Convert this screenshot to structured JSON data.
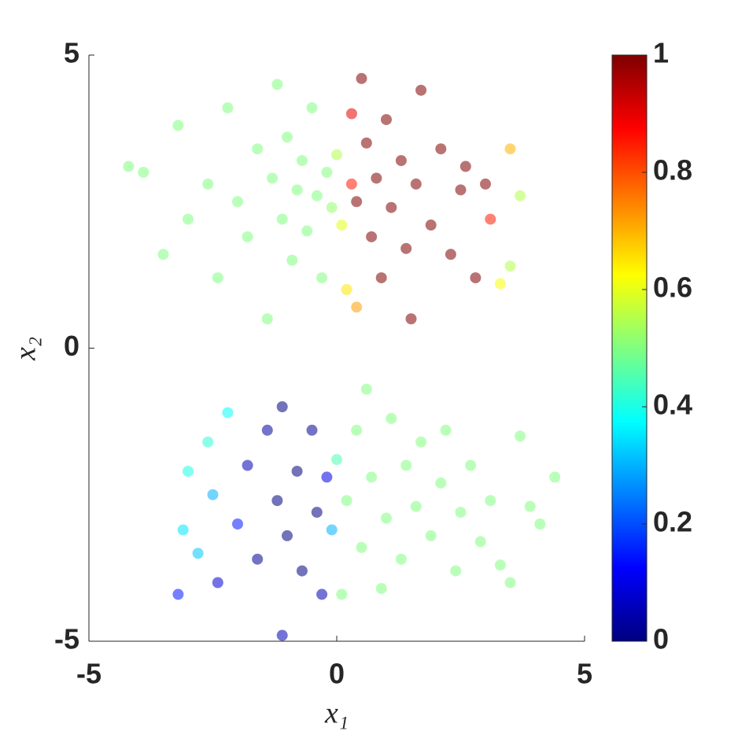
{
  "chart_data": {
    "type": "scatter",
    "xlabel": "x₁",
    "ylabel": "x₂",
    "colormap": "jet",
    "xlim": [
      -5,
      5
    ],
    "ylim": [
      -5,
      5
    ],
    "xticks": [
      -5,
      0,
      5
    ],
    "yticks": [
      -5,
      0,
      5
    ],
    "clim": [
      0,
      1
    ],
    "cticks": [
      0,
      0.2,
      0.4,
      0.6,
      0.8,
      1
    ],
    "x": [
      -4.2,
      -3.9,
      -3.5,
      -3.2,
      -3.0,
      -2.6,
      -2.4,
      -2.2,
      -2.0,
      -1.8,
      -1.6,
      -1.4,
      -1.3,
      -1.2,
      -1.1,
      -1.0,
      -0.9,
      -0.8,
      -0.7,
      -0.6,
      -0.5,
      -0.4,
      -0.3,
      -0.2,
      -0.1,
      0.0,
      0.1,
      0.2,
      0.3,
      0.3,
      0.4,
      0.4,
      0.5,
      0.6,
      0.7,
      0.8,
      0.9,
      1.0,
      1.1,
      1.3,
      1.4,
      1.5,
      1.6,
      1.7,
      1.9,
      2.1,
      2.3,
      2.5,
      2.6,
      2.8,
      3.0,
      3.1,
      3.3,
      3.5,
      3.5,
      3.7,
      -3.2,
      -3.1,
      -3.0,
      -2.8,
      -2.6,
      -2.5,
      -2.4,
      -2.2,
      -2.0,
      -1.8,
      -1.6,
      -1.4,
      -1.2,
      -1.1,
      -1.1,
      -1.0,
      -0.8,
      -0.7,
      -0.5,
      -0.4,
      -0.3,
      -0.2,
      -0.1,
      0.0,
      0.1,
      0.2,
      0.4,
      0.5,
      0.6,
      0.7,
      0.9,
      1.0,
      1.1,
      1.3,
      1.4,
      1.6,
      1.7,
      1.9,
      2.1,
      2.2,
      2.4,
      2.5,
      2.7,
      2.9,
      3.1,
      3.3,
      3.5,
      3.7,
      3.9,
      4.1,
      4.4
    ],
    "y": [
      3.1,
      3.0,
      1.6,
      3.8,
      2.2,
      2.8,
      1.2,
      4.1,
      2.5,
      1.9,
      3.4,
      0.5,
      2.9,
      4.5,
      2.2,
      3.6,
      1.5,
      2.7,
      3.2,
      2.0,
      4.1,
      2.6,
      1.2,
      3.0,
      2.4,
      3.3,
      2.1,
      1.0,
      2.8,
      4.0,
      2.5,
      0.7,
      4.6,
      3.5,
      1.9,
      2.9,
      1.2,
      3.9,
      2.4,
      3.2,
      1.7,
      0.5,
      2.8,
      4.4,
      2.1,
      3.4,
      1.6,
      2.7,
      3.1,
      1.2,
      2.8,
      2.2,
      1.1,
      3.4,
      1.4,
      2.6,
      -4.2,
      -3.1,
      -2.1,
      -3.5,
      -1.6,
      -2.5,
      -4.0,
      -1.1,
      -3.0,
      -2.0,
      -3.6,
      -1.4,
      -2.6,
      -1.0,
      -4.9,
      -3.2,
      -2.1,
      -3.8,
      -1.4,
      -2.8,
      -4.2,
      -2.2,
      -3.1,
      -1.9,
      -4.2,
      -2.6,
      -1.4,
      -3.4,
      -0.7,
      -2.2,
      -4.1,
      -2.9,
      -1.2,
      -3.6,
      -2.0,
      -2.7,
      -1.6,
      -3.2,
      -2.3,
      -1.4,
      -3.8,
      -2.8,
      -2.0,
      -3.3,
      -2.6,
      -3.7,
      -4.0,
      -1.5,
      -2.7,
      -3.0,
      -2.2
    ],
    "c": [
      0.5,
      0.5,
      0.5,
      0.5,
      0.5,
      0.5,
      0.5,
      0.5,
      0.5,
      0.5,
      0.5,
      0.5,
      0.5,
      0.5,
      0.5,
      0.5,
      0.5,
      0.5,
      0.5,
      0.5,
      0.5,
      0.5,
      0.5,
      0.5,
      0.52,
      0.55,
      0.6,
      0.65,
      0.85,
      0.9,
      1,
      0.72,
      1,
      1,
      1,
      1,
      1,
      1,
      1,
      1,
      1,
      1,
      1,
      1,
      1,
      1,
      1,
      1,
      1,
      1,
      1,
      0.85,
      0.62,
      0.7,
      0.55,
      0.55,
      0.15,
      0.35,
      0.4,
      0.32,
      0.42,
      0.3,
      0.08,
      0.38,
      0.15,
      0.05,
      0.02,
      0.03,
      0,
      0,
      0.05,
      0,
      0,
      0,
      0.02,
      0,
      0.05,
      0.1,
      0.3,
      0.45,
      0.5,
      0.5,
      0.5,
      0.5,
      0.5,
      0.5,
      0.5,
      0.5,
      0.5,
      0.5,
      0.5,
      0.5,
      0.5,
      0.5,
      0.5,
      0.5,
      0.5,
      0.5,
      0.5,
      0.5,
      0.5,
      0.5,
      0.5,
      0.5,
      0.5,
      0.5,
      0.5
    ]
  }
}
